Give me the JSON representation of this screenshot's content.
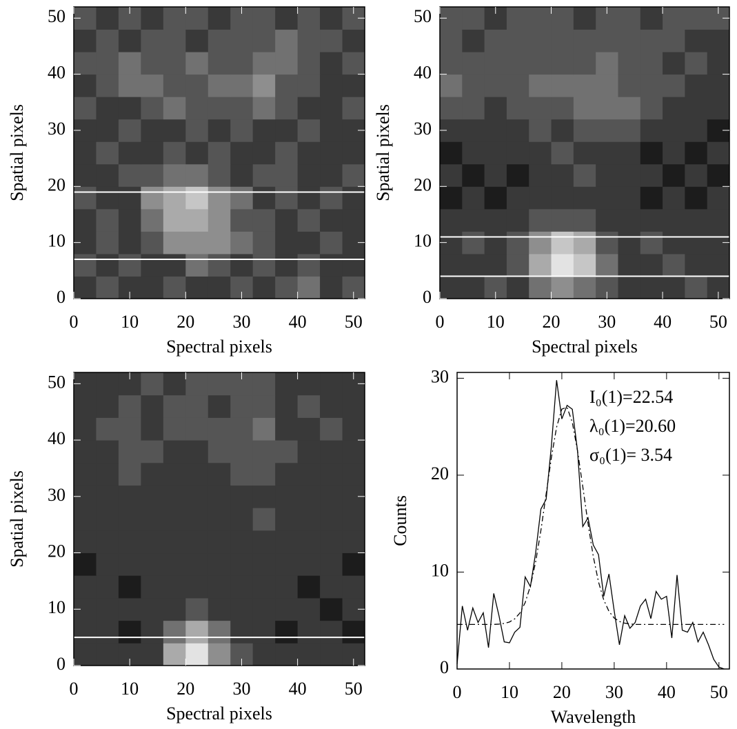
{
  "chart_data": [
    {
      "type": "heatmap",
      "xlabel": "Spectral pixels",
      "ylabel": "Spatial pixels",
      "xlim": [
        0,
        52
      ],
      "ylim": [
        0,
        52
      ],
      "xticks": [
        0,
        10,
        20,
        30,
        40,
        50
      ],
      "yticks": [
        0,
        10,
        20,
        30,
        40,
        50
      ],
      "zlim": [
        0,
        9
      ],
      "hlines": [
        19,
        7
      ],
      "z": [
        [
          2,
          3,
          2,
          2,
          3,
          2,
          2,
          3,
          2,
          3,
          4,
          2,
          3
        ],
        [
          3,
          2,
          3,
          2,
          2,
          4,
          3,
          2,
          3,
          2,
          3,
          2,
          2
        ],
        [
          2,
          3,
          2,
          3,
          5,
          5,
          5,
          4,
          3,
          2,
          2,
          3,
          2
        ],
        [
          2,
          3,
          2,
          4,
          6,
          6,
          5,
          3,
          3,
          2,
          3,
          2,
          2
        ],
        [
          3,
          2,
          2,
          5,
          6,
          7,
          5,
          4,
          2,
          3,
          2,
          3,
          2
        ],
        [
          2,
          2,
          3,
          3,
          4,
          4,
          3,
          2,
          3,
          3,
          2,
          2,
          3
        ],
        [
          2,
          3,
          2,
          2,
          3,
          2,
          3,
          2,
          2,
          3,
          2,
          2,
          2
        ],
        [
          2,
          2,
          3,
          2,
          2,
          3,
          2,
          3,
          2,
          2,
          3,
          2,
          2
        ],
        [
          3,
          2,
          2,
          3,
          4,
          3,
          3,
          3,
          4,
          3,
          2,
          2,
          3
        ],
        [
          2,
          3,
          4,
          4,
          3,
          3,
          4,
          4,
          5,
          3,
          3,
          2,
          2
        ],
        [
          3,
          3,
          4,
          3,
          3,
          4,
          3,
          3,
          4,
          4,
          3,
          2,
          3
        ],
        [
          2,
          3,
          2,
          3,
          3,
          2,
          3,
          3,
          3,
          4,
          3,
          3,
          2
        ],
        [
          3,
          2,
          3,
          2,
          3,
          3,
          2,
          3,
          3,
          2,
          3,
          2,
          3
        ]
      ]
    },
    {
      "type": "heatmap",
      "xlabel": "Spectral pixels",
      "ylabel": "Spatial pixels",
      "xlim": [
        0,
        52
      ],
      "ylim": [
        0,
        52
      ],
      "xticks": [
        0,
        10,
        20,
        30,
        40,
        50
      ],
      "yticks": [
        0,
        10,
        20,
        30,
        40,
        50
      ],
      "zlim": [
        0,
        9
      ],
      "hlines": [
        11,
        4
      ],
      "z": [
        [
          2,
          2,
          3,
          2,
          4,
          5,
          4,
          3,
          2,
          2,
          2,
          3,
          2
        ],
        [
          2,
          2,
          2,
          3,
          6,
          8,
          7,
          4,
          2,
          2,
          3,
          2,
          2
        ],
        [
          2,
          3,
          2,
          3,
          5,
          7,
          6,
          3,
          2,
          3,
          2,
          2,
          2
        ],
        [
          2,
          2,
          2,
          2,
          3,
          3,
          3,
          2,
          2,
          2,
          2,
          2,
          2
        ],
        [
          1,
          2,
          1,
          2,
          2,
          2,
          2,
          2,
          2,
          1,
          2,
          1,
          2
        ],
        [
          2,
          1,
          2,
          1,
          2,
          2,
          3,
          2,
          2,
          2,
          1,
          2,
          1
        ],
        [
          1,
          2,
          2,
          2,
          2,
          3,
          2,
          2,
          2,
          1,
          2,
          1,
          2
        ],
        [
          2,
          2,
          2,
          2,
          3,
          2,
          3,
          3,
          3,
          2,
          2,
          2,
          1
        ],
        [
          3,
          3,
          2,
          3,
          3,
          3,
          4,
          4,
          4,
          3,
          2,
          2,
          2
        ],
        [
          4,
          3,
          3,
          3,
          4,
          4,
          4,
          4,
          3,
          3,
          3,
          2,
          2
        ],
        [
          3,
          3,
          3,
          3,
          3,
          3,
          3,
          4,
          3,
          3,
          2,
          3,
          2
        ],
        [
          3,
          2,
          3,
          3,
          3,
          3,
          3,
          3,
          3,
          3,
          3,
          2,
          2
        ],
        [
          3,
          3,
          2,
          3,
          3,
          3,
          2,
          3,
          3,
          2,
          3,
          3,
          3
        ]
      ]
    },
    {
      "type": "heatmap",
      "xlabel": "Spectral pixels",
      "ylabel": "Spatial pixels",
      "xlim": [
        0,
        52
      ],
      "ylim": [
        0,
        52
      ],
      "xticks": [
        0,
        10,
        20,
        30,
        40,
        50
      ],
      "yticks": [
        0,
        10,
        20,
        30,
        40,
        50
      ],
      "zlim": [
        0,
        9
      ],
      "hlines": [
        5
      ],
      "z": [
        [
          2,
          2,
          2,
          2,
          6,
          8,
          5,
          3,
          2,
          2,
          2,
          2,
          2
        ],
        [
          2,
          2,
          1,
          2,
          4,
          6,
          4,
          2,
          2,
          1,
          2,
          2,
          1
        ],
        [
          2,
          2,
          2,
          2,
          2,
          3,
          2,
          2,
          2,
          2,
          2,
          1,
          2
        ],
        [
          2,
          2,
          1,
          2,
          2,
          2,
          2,
          2,
          2,
          2,
          1,
          2,
          2
        ],
        [
          1,
          2,
          2,
          2,
          2,
          2,
          2,
          2,
          2,
          2,
          2,
          2,
          1
        ],
        [
          2,
          2,
          2,
          2,
          2,
          2,
          2,
          2,
          2,
          2,
          2,
          2,
          2
        ],
        [
          2,
          2,
          2,
          2,
          2,
          2,
          2,
          2,
          3,
          2,
          2,
          2,
          2
        ],
        [
          2,
          2,
          2,
          2,
          2,
          2,
          2,
          2,
          2,
          2,
          2,
          2,
          2
        ],
        [
          2,
          2,
          3,
          2,
          2,
          2,
          2,
          3,
          3,
          2,
          2,
          2,
          2
        ],
        [
          2,
          2,
          3,
          3,
          2,
          2,
          3,
          3,
          3,
          3,
          2,
          2,
          2
        ],
        [
          2,
          3,
          3,
          2,
          3,
          3,
          3,
          3,
          4,
          2,
          2,
          3,
          2
        ],
        [
          2,
          2,
          3,
          2,
          3,
          3,
          2,
          3,
          3,
          2,
          3,
          2,
          2
        ],
        [
          2,
          2,
          2,
          3,
          2,
          3,
          3,
          3,
          3,
          2,
          2,
          2,
          2
        ]
      ]
    },
    {
      "type": "line",
      "xlabel": "Wavelength",
      "ylabel": "Counts",
      "xlim": [
        0,
        52
      ],
      "ylim": [
        0,
        30.6
      ],
      "xticks": [
        0,
        10,
        20,
        30,
        40,
        50
      ],
      "yticks": [
        0,
        10,
        20,
        30
      ],
      "x": [
        0,
        1,
        2,
        3,
        4,
        5,
        6,
        7,
        8,
        9,
        10,
        11,
        12,
        13,
        14,
        15,
        16,
        17,
        18,
        19,
        20,
        21,
        22,
        23,
        24,
        25,
        26,
        27,
        28,
        29,
        30,
        31,
        32,
        33,
        34,
        35,
        36,
        37,
        38,
        39,
        40,
        41,
        42,
        43,
        44,
        45,
        46,
        47,
        48,
        49,
        50,
        51
      ],
      "series": [
        {
          "color": "#000000",
          "dash": "solid",
          "values": [
            0.5,
            6.5,
            4,
            6.3,
            4.8,
            5.8,
            2.2,
            7.8,
            5.5,
            2.8,
            2.7,
            3.8,
            4.3,
            9.5,
            8.5,
            12,
            16.5,
            17.5,
            23,
            29.8,
            25.8,
            27.2,
            26.8,
            22.5,
            14.7,
            15.6,
            12.8,
            11.8,
            7.5,
            9.8,
            6,
            2.5,
            5.5,
            4.2,
            4.8,
            6.5,
            7.2,
            5.2,
            8,
            7.2,
            7.5,
            3.2,
            9.7,
            4,
            3.8,
            4.8,
            2.8,
            3.8,
            2.5,
            1,
            0.2,
            0
          ]
        },
        {
          "color": "#000000",
          "dash": "dashdot",
          "values": [
            4.6,
            4.6,
            4.6,
            4.6,
            4.6,
            4.6,
            4.6,
            4.6,
            4.63,
            4.7,
            4.85,
            5.17,
            5.78,
            6.85,
            8.57,
            11.05,
            14.29,
            18.04,
            21.8,
            24.95,
            26.82,
            27,
            25.45,
            22.5,
            18.82,
            15.01,
            11.63,
            8.99,
            7.13,
            5.95,
            5.26,
            4.9,
            4.73,
            4.65,
            4.6,
            4.6,
            4.6,
            4.6,
            4.6,
            4.6,
            4.6,
            4.6,
            4.6,
            4.6,
            4.6,
            4.6,
            4.6,
            4.6,
            4.6,
            4.6,
            4.6,
            4.6
          ]
        }
      ],
      "annotations": [
        "I₀(1)=22.54",
        "λ₀(1)=20.60",
        "σ₀(1)=  3.54"
      ]
    }
  ]
}
